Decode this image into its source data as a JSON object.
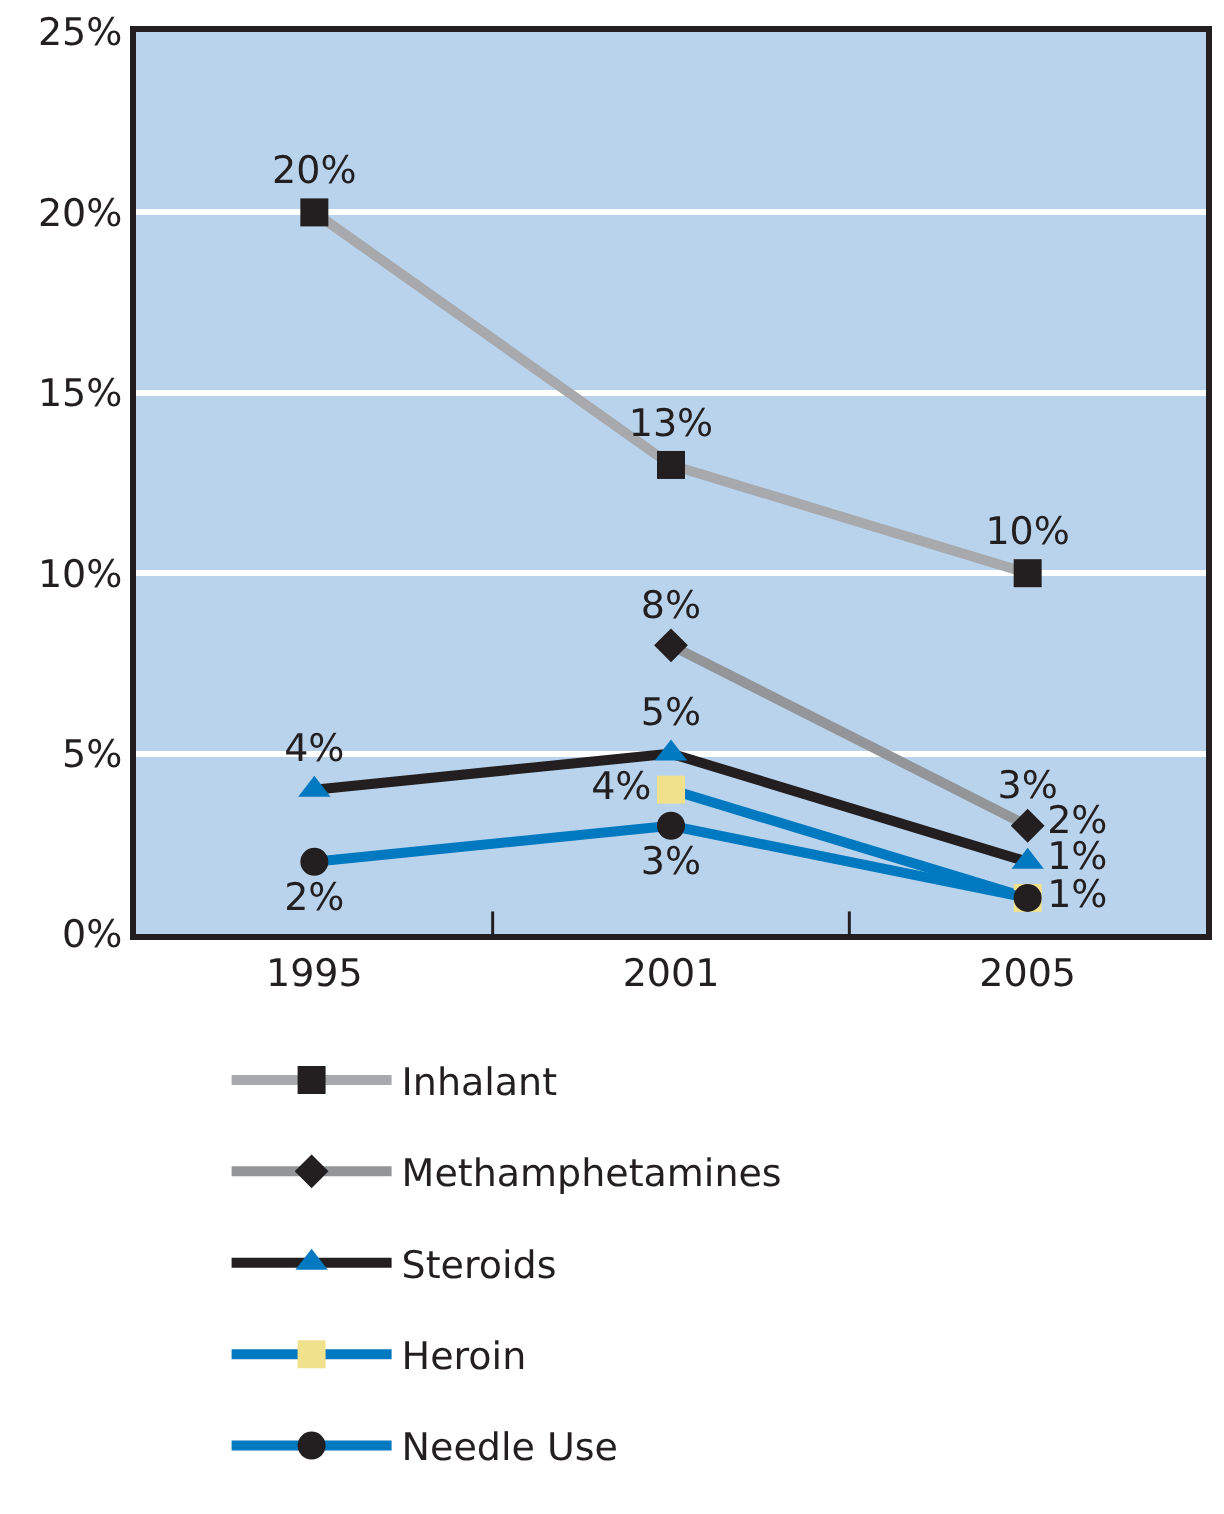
{
  "chart_data": {
    "type": "line",
    "categories": [
      "1995",
      "2001",
      "2005"
    ],
    "ylim": [
      0,
      25
    ],
    "yticks": [
      {
        "value": 0,
        "label": "0%"
      },
      {
        "value": 5,
        "label": "5%"
      },
      {
        "value": 10,
        "label": "10%"
      },
      {
        "value": 15,
        "label": "15%"
      },
      {
        "value": 20,
        "label": "20%"
      },
      {
        "value": 25,
        "label": "25%"
      }
    ],
    "grid": "y",
    "legend": "bottom",
    "series": [
      {
        "name": "Inhalant",
        "color": "#a7a9ac",
        "marker": "square",
        "values": [
          20,
          13,
          10
        ],
        "value_labels": [
          "20%",
          "13%",
          "10%"
        ]
      },
      {
        "name": "Methamphetamines",
        "color": "#939598",
        "marker": "diamond",
        "values": [
          null,
          8,
          3
        ],
        "value_labels": [
          null,
          "8%",
          "3%"
        ]
      },
      {
        "name": "Steroids",
        "color": "#231f20",
        "marker": "triangle",
        "values": [
          4,
          5,
          2
        ],
        "value_labels": [
          "4%",
          "5%",
          "2%"
        ]
      },
      {
        "name": "Heroin",
        "color": "#0079c1",
        "marker": "square",
        "values": [
          null,
          4,
          1
        ],
        "value_labels": [
          null,
          "4%",
          "1%"
        ]
      },
      {
        "name": "Needle Use",
        "color": "#0079c1",
        "marker": "circle",
        "values": [
          2,
          3,
          1
        ],
        "value_labels": [
          "2%",
          "3%",
          "1%"
        ]
      }
    ]
  }
}
